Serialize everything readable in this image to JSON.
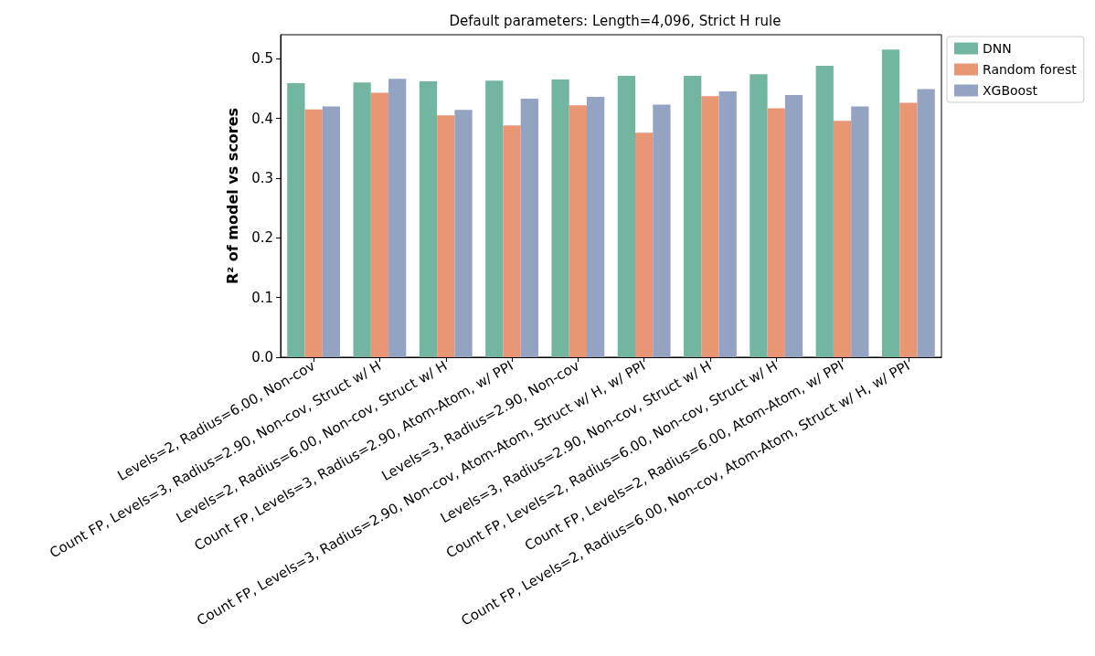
{
  "chart_data": {
    "type": "bar",
    "title": "Default parameters: Length=4,096, Strict H rule",
    "ylabel": "R² of model vs scores",
    "categories": [
      "Levels=2, Radius=6.00, Non-cov",
      "Count FP, Levels=3, Radius=2.90, Non-cov, Struct w/ H",
      "Levels=2, Radius=6.00, Non-cov, Struct w/ H",
      "Count FP, Levels=3, Radius=2.90, Atom-Atom, w/ PPI",
      "Levels=3, Radius=2.90, Non-cov",
      "Count FP, Levels=3, Radius=2.90, Non-cov, Atom-Atom, Struct w/ H, w/ PPI",
      "Levels=3, Radius=2.90, Non-cov, Struct w/ H",
      "Count FP, Levels=2, Radius=6.00, Non-cov, Struct w/ H",
      "Count FP, Levels=2, Radius=6.00, Atom-Atom, w/ PPI",
      "Count FP, Levels=2, Radius=6.00, Non-cov, Atom-Atom, Struct w/ H, w/ PPI"
    ],
    "series": [
      {
        "name": "DNN",
        "color": "#72b6a1",
        "values": [
          0.459,
          0.46,
          0.462,
          0.463,
          0.465,
          0.471,
          0.471,
          0.474,
          0.488,
          0.515
        ]
      },
      {
        "name": "Random forest",
        "color": "#e99675",
        "values": [
          0.415,
          0.443,
          0.405,
          0.388,
          0.422,
          0.376,
          0.437,
          0.417,
          0.396,
          0.426
        ]
      },
      {
        "name": "XGBoost",
        "color": "#95a3c3",
        "values": [
          0.42,
          0.466,
          0.414,
          0.433,
          0.436,
          0.423,
          0.445,
          0.439,
          0.42,
          0.449
        ]
      }
    ],
    "ylim": [
      0,
      0.54
    ],
    "yticks": [
      {
        "value": 0,
        "label": "0.0"
      },
      0.1,
      0.2,
      0.3,
      0.4,
      0.5
    ],
    "grid": false,
    "legend": "top right"
  }
}
